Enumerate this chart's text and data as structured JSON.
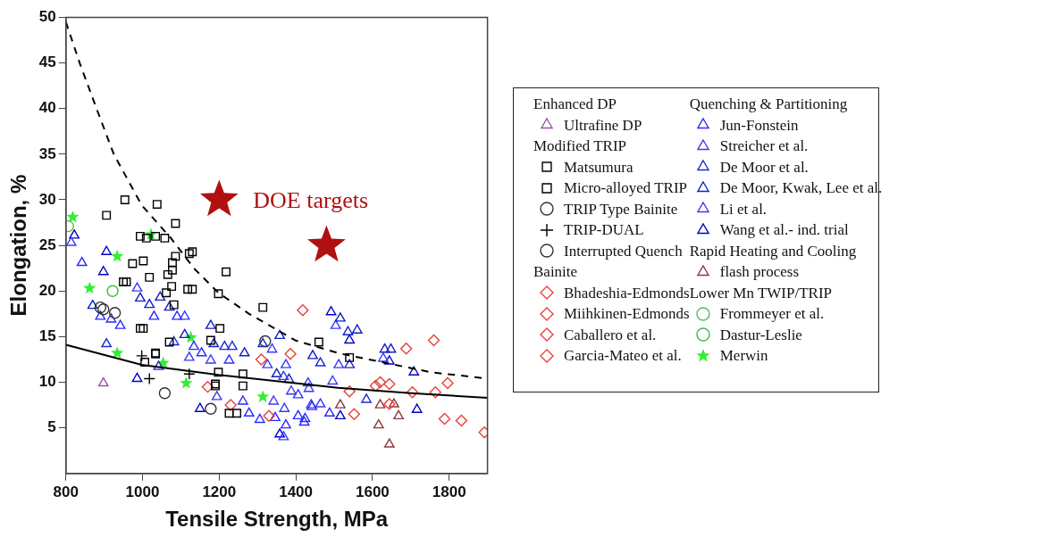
{
  "chart_data": {
    "type": "scatter",
    "xlabel": "Tensile Strength, MPa",
    "ylabel": "Elongation, %",
    "xlim": [
      800,
      1900
    ],
    "xticks": [
      800,
      1000,
      1200,
      1400,
      1600,
      1800
    ],
    "ylim": [
      0,
      50
    ],
    "yticks": [
      5,
      10,
      15,
      20,
      25,
      30,
      35,
      40,
      45,
      50
    ],
    "grid": false,
    "legend": "right",
    "marker": "circle",
    "annotations": [
      "Enhanced DP",
      "Modified TRIP",
      "Bainite",
      "Quenching & Partitioning",
      "Rapid Heating and Cooling",
      "Lower Mn TWIP/TRIP",
      {
        "text": "DOE targets",
        "x": 1200,
        "y": 30
      }
    ],
    "series": [
      {
        "name": "Ultrafine DP",
        "color": "#a050a8",
        "marker": "triangle",
        "x": [
          898
        ],
        "values": [
          9.9
        ]
      },
      {
        "name": "Matsumura",
        "color": "#000000",
        "marker": "square",
        "x": [
          954,
          1038,
          1086,
          1034,
          1058,
          1130,
          1086,
          1002,
          1078,
          1218,
          1018,
          958,
          1076,
          1130,
          1198,
          1314,
          994,
          1202,
          1034,
          1006,
          1198,
          1262,
          1190,
          1262,
          1246,
          1460,
          1540
        ],
        "values": [
          30,
          29.5,
          27.4,
          26,
          25.8,
          24.3,
          23.8,
          23.3,
          22.3,
          22.1,
          21.5,
          21,
          20.5,
          20.2,
          19.7,
          18.2,
          15.9,
          15.9,
          13.1,
          12.2,
          11.1,
          10.9,
          9.8,
          9.6,
          6.6,
          14.4,
          12.7
        ]
      },
      {
        "name": "Micro-alloyed TRIP",
        "color": "#000000",
        "marker": "square",
        "x": [
          906,
          994,
          974,
          950,
          1066,
          1010,
          1062,
          1122,
          1118,
          1002,
          1034,
          1070,
          1178,
          1226,
          1190,
          1082,
          1078
        ],
        "values": [
          28.3,
          26,
          23,
          21,
          21.8,
          25.8,
          19.8,
          24.1,
          20.2,
          15.9,
          13.2,
          14.4,
          14.6,
          6.6,
          9.6,
          18.5,
          23.1
        ]
      },
      {
        "name": "TRIP Type Bainite",
        "color": "#333333",
        "x": [
          898,
          928,
          1058,
          1178
        ],
        "values": [
          18,
          17.6,
          8.8,
          7.1
        ]
      },
      {
        "name": "TRIP-DUAL",
        "color": "#000000",
        "marker": "cross",
        "x": [
          998,
          1018,
          1122
        ],
        "values": [
          12.9,
          10.4,
          10.9
        ]
      },
      {
        "name": "Interrupted Quench",
        "color": "#333333",
        "x": [
          890,
          1320
        ],
        "values": [
          18.2,
          14.5
        ]
      },
      {
        "name": "Bhadeshia-Edmonds",
        "color": "#e8403a",
        "marker": "diamond",
        "x": [
          1418,
          1386,
          1540,
          1552,
          1608,
          1704,
          1764,
          1796,
          1310
        ],
        "values": [
          17.9,
          13.1,
          9,
          6.5,
          9.6,
          8.9,
          8.9,
          9.9,
          12.5
        ]
      },
      {
        "name": "Miihkinen-Edmonds",
        "color": "#e8403a",
        "marker": "diamond",
        "x": [
          1788,
          1832,
          1644,
          1170,
          1230
        ],
        "values": [
          6,
          5.8,
          7.6,
          9.5,
          7.5
        ]
      },
      {
        "name": "Caballero et al.",
        "color": "#e8403a",
        "marker": "diamond",
        "x": [
          1644,
          1620,
          1330
        ],
        "values": [
          9.8,
          10,
          6.3
        ]
      },
      {
        "name": "Garcia-Mateo et al.",
        "color": "#e8403a",
        "marker": "diamond",
        "x": [
          1688,
          1760,
          1892
        ],
        "values": [
          13.7,
          14.6,
          4.5
        ]
      },
      {
        "name": "Jun-Fonstein",
        "color": "#2a2aff",
        "marker": "triangle",
        "x": [
          842,
          890,
          918,
          942,
          1030,
          1090,
          1134,
          1154,
          1226,
          1262,
          1278,
          1306,
          1346,
          1374,
          1406,
          1422,
          1442,
          1424,
          1488
        ],
        "values": [
          23.1,
          17.2,
          16.9,
          16.2,
          17.2,
          17.2,
          13.9,
          13.2,
          12.4,
          7.9,
          6.6,
          5.9,
          6.1,
          5.3,
          6.3,
          5.6,
          7.3,
          6,
          6.6
        ]
      },
      {
        "name": "Streicher et al.",
        "color": "#3a3aee",
        "marker": "triangle",
        "x": [
          1194,
          1342,
          1370,
          1406,
          1434,
          1388,
          1440,
          1464,
          1368,
          1432
        ],
        "values": [
          8.4,
          7.9,
          7.1,
          8.6,
          9.3,
          9,
          7.5,
          7.6,
          10.6,
          9.9
        ]
      },
      {
        "name": "De Moor et al.",
        "color": "#1a2ad8",
        "marker": "triangle",
        "x": [
          906,
          1082,
          1214,
          1234,
          1314,
          1464,
          1540,
          1584,
          1042
        ],
        "values": [
          14.2,
          14.4,
          13.9,
          13.9,
          14.2,
          12.1,
          11.9,
          8.1,
          11.7
        ]
      },
      {
        "name": "De Moor, Kwak, Lee et al.",
        "color": "#1020c8",
        "marker": "triangle",
        "x": [
          870,
          994,
          1018,
          1046,
          1070,
          1110,
          1178,
          1186,
          1266,
          1358,
          1516,
          1536,
          1560,
          1632,
          1648,
          1444,
          1350,
          1382
        ],
        "values": [
          18.4,
          19.2,
          18.5,
          19.3,
          18.2,
          15.2,
          16.2,
          14.2,
          13.2,
          15.1,
          17,
          15.5,
          15.7,
          13.6,
          13.6,
          12.9,
          10.9,
          10.3
        ]
      },
      {
        "name": "Li et al.",
        "color": "#3a3aff",
        "marker": "triangle",
        "x": [
          814,
          986,
          1110,
          1122,
          1178,
          1326,
          1338,
          1374,
          1504,
          1512,
          1628,
          1496,
          1368
        ],
        "values": [
          25.3,
          20.3,
          17.2,
          12.7,
          12.4,
          11.9,
          13.6,
          11.9,
          16.2,
          11.9,
          12.6,
          10.1,
          4
        ]
      },
      {
        "name": "Wang et al.- ind. trial",
        "color": "#0000cc",
        "marker": "triangle",
        "x": [
          822,
          906,
          898,
          1492,
          1540,
          1644,
          1708,
          1716,
          1358,
          1150,
          986,
          1516
        ],
        "values": [
          26.1,
          24.3,
          22.1,
          17.7,
          14.6,
          12.3,
          11.1,
          7,
          4.3,
          7.1,
          10.4,
          6.3
        ]
      },
      {
        "name": "flash process",
        "color": "#8b3a3a",
        "marker": "triangle",
        "x": [
          1516,
          1616,
          1620,
          1656,
          1668,
          1644
        ],
        "values": [
          7.5,
          5.3,
          7.5,
          7.6,
          6.3,
          3.2
        ]
      },
      {
        "name": "Frommeyer et al.",
        "color": "#55bb55",
        "x": [
          806
        ],
        "values": [
          27.1
        ]
      },
      {
        "name": "Dastur-Leslie",
        "color": "#44bb44",
        "x": [
          922
        ],
        "values": [
          20
        ]
      },
      {
        "name": "Merwin",
        "color": "#33ee33",
        "marker": "star",
        "x": [
          818,
          934,
          862,
          934,
          1022,
          1054,
          1114,
          1314,
          1126
        ],
        "values": [
          28.1,
          23.8,
          20.3,
          13.2,
          26.2,
          12.1,
          9.9,
          8.4,
          14.9
        ]
      },
      {
        "color": "#b01010",
        "marker": "star",
        "x": [
          1200,
          1480
        ],
        "values": [
          30,
          25
        ]
      },
      {
        "type": "line",
        "color": "#000000",
        "marker": "none",
        "line_style": "dashed",
        "x": [
          800,
          836,
          880,
          925,
          998,
          1074,
          1134,
          1198,
          1278,
          1398,
          1510,
          1752,
          1900
        ],
        "values": [
          49.5,
          45,
          40,
          35,
          29.4,
          25.8,
          22.5,
          19.8,
          17.5,
          14.6,
          13.2,
          11.1,
          10.4
        ]
      },
      {
        "type": "line",
        "color": "#000000",
        "marker": "none",
        "line_style": "solid",
        "x": [
          800,
          998,
          1198,
          1398,
          1510,
          1700,
          1900
        ],
        "values": [
          14.1,
          11.9,
          10.8,
          9.9,
          9.4,
          8.8,
          8.3
        ]
      }
    ]
  }
}
